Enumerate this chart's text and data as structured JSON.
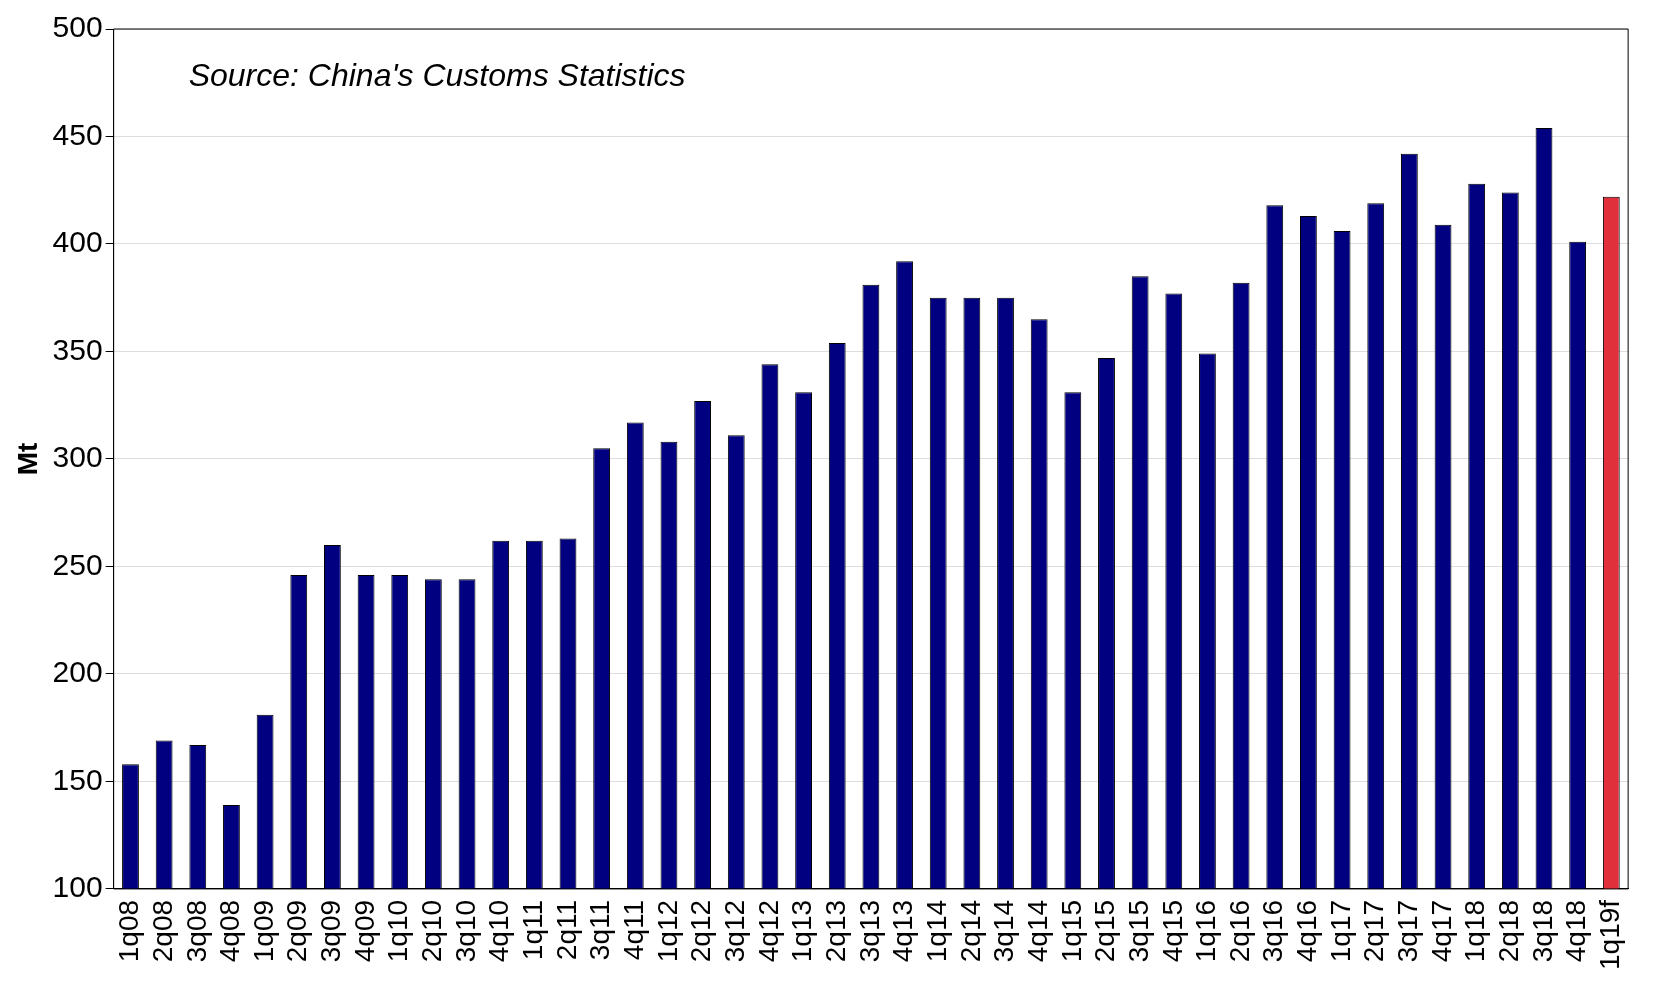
{
  "chart_data": {
    "type": "bar",
    "ylabel": "Mt",
    "annotations": [
      "Source: China's Customs Statistics"
    ],
    "categories": [
      "1q08",
      "2q08",
      "3q08",
      "4q08",
      "1q09",
      "2q09",
      "3q09",
      "4q09",
      "1q10",
      "2q10",
      "3q10",
      "4q10",
      "1q11",
      "2q11",
      "3q11",
      "4q11",
      "1q12",
      "2q12",
      "3q12",
      "4q12",
      "1q13",
      "2q13",
      "3q13",
      "4q13",
      "1q14",
      "2q14",
      "3q14",
      "4q14",
      "1q15",
      "2q15",
      "3q15",
      "4q15",
      "1q16",
      "2q16",
      "3q16",
      "4q16",
      "1q17",
      "2q17",
      "3q17",
      "4q17",
      "1q18",
      "2q18",
      "3q18",
      "4q18",
      "1q19f"
    ],
    "values": [
      158,
      169,
      167,
      139,
      181,
      246,
      260,
      246,
      246,
      244,
      244,
      262,
      262,
      263,
      305,
      317,
      308,
      327,
      311,
      344,
      331,
      354,
      381,
      392,
      375,
      375,
      375,
      365,
      331,
      347,
      385,
      377,
      349,
      382,
      418,
      413,
      406,
      419,
      442,
      409,
      428,
      424,
      454,
      401,
      422
    ],
    "colors": [
      "#000080",
      "#000080",
      "#000080",
      "#000080",
      "#000080",
      "#000080",
      "#000080",
      "#000080",
      "#000080",
      "#000080",
      "#000080",
      "#000080",
      "#000080",
      "#000080",
      "#000080",
      "#000080",
      "#000080",
      "#000080",
      "#000080",
      "#000080",
      "#000080",
      "#000080",
      "#000080",
      "#000080",
      "#000080",
      "#000080",
      "#000080",
      "#000080",
      "#000080",
      "#000080",
      "#000080",
      "#000080",
      "#000080",
      "#000080",
      "#000080",
      "#000080",
      "#000080",
      "#000080",
      "#000080",
      "#000080",
      "#000080",
      "#000080",
      "#000080",
      "#000080",
      "#e0303c"
    ],
    "ylim": [
      100,
      500
    ],
    "yticks": [
      100,
      150,
      200,
      250,
      300,
      350,
      400,
      450,
      500
    ],
    "grid": "y",
    "legend": false
  }
}
